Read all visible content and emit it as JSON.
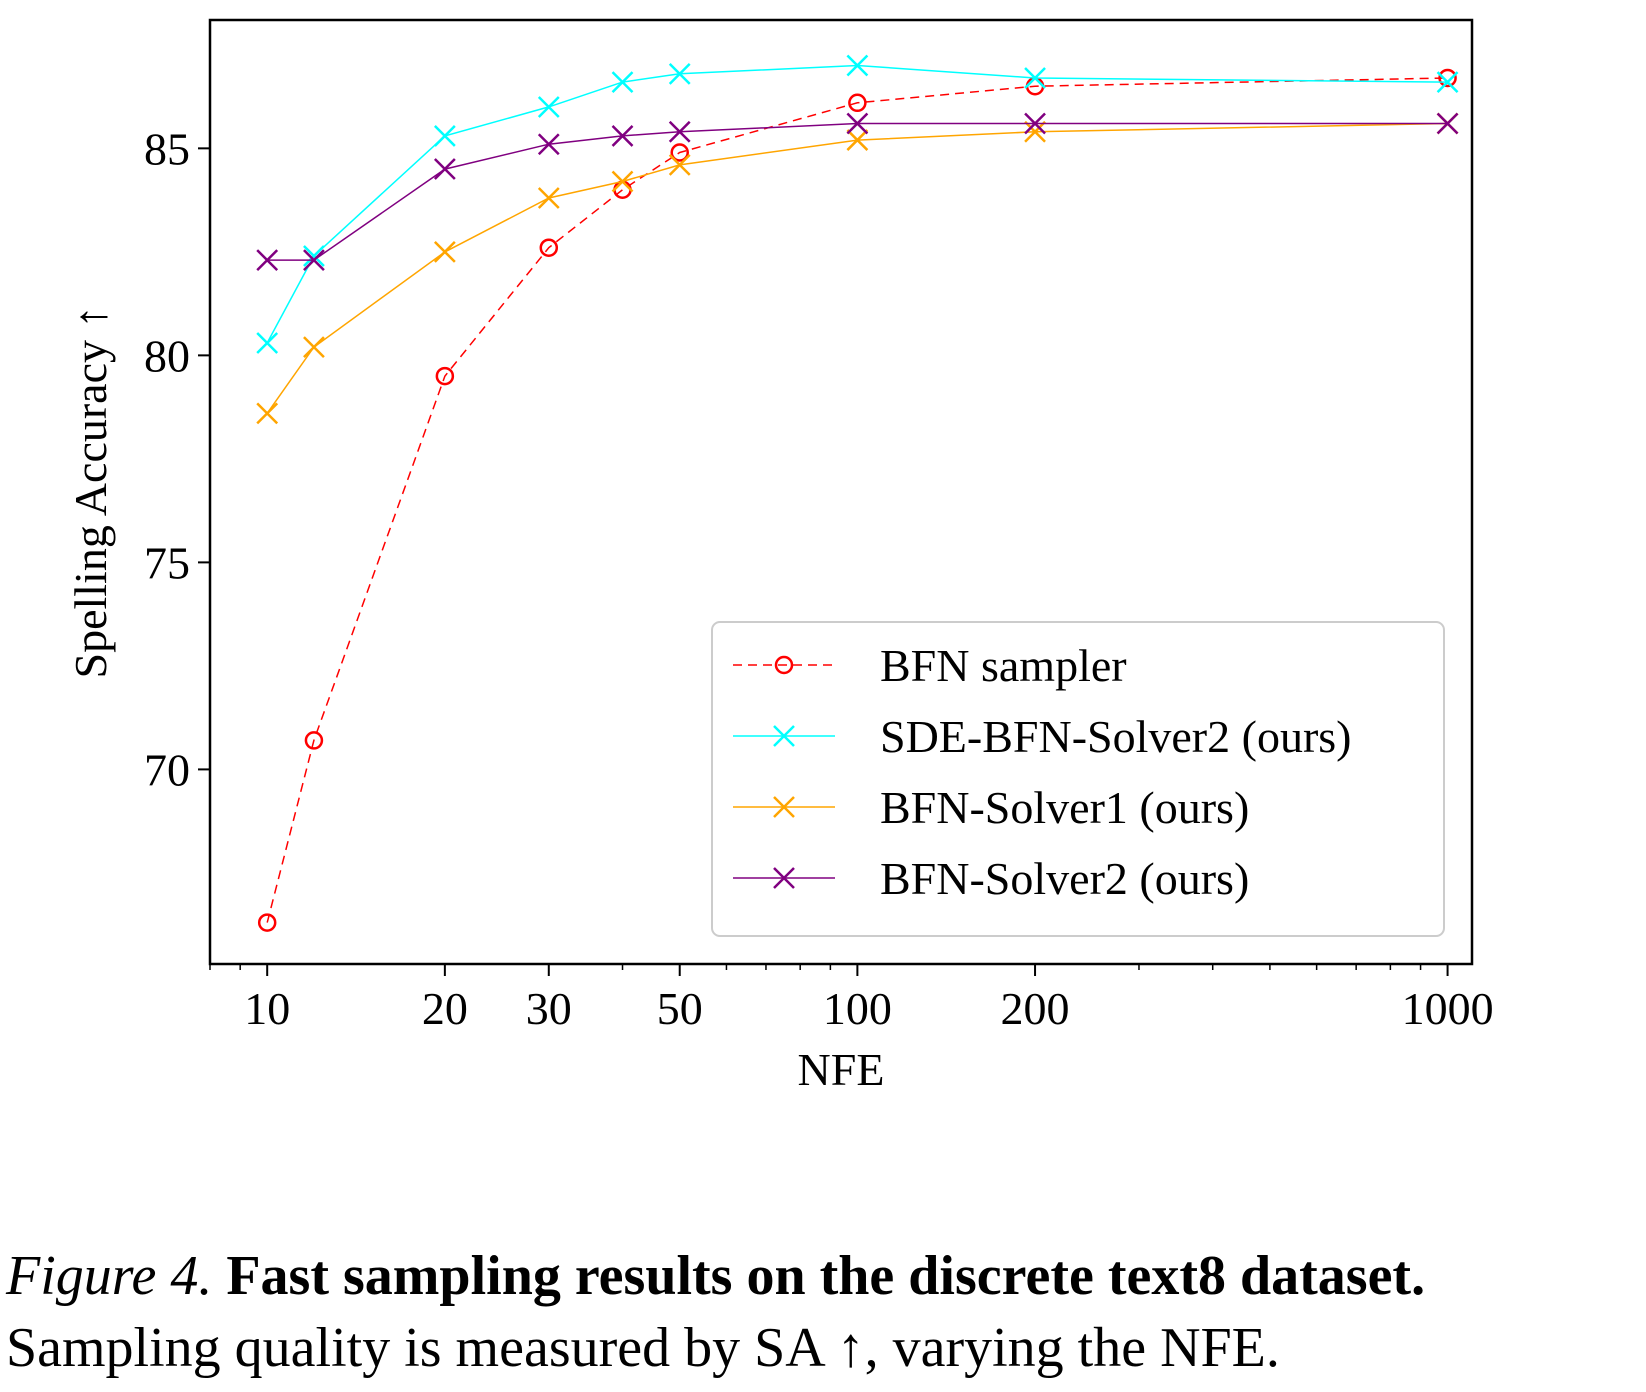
{
  "chart_data": {
    "type": "line",
    "xscale": "log",
    "xlabel": "NFE",
    "ylabel": "Spelling Accuracy ↑",
    "x_ticks": [
      10,
      20,
      30,
      50,
      100,
      200,
      1000
    ],
    "x_tick_labels": [
      "10",
      "20",
      "30",
      "50",
      "100",
      "200",
      "1000"
    ],
    "y_ticks": [
      70,
      75,
      80,
      85
    ],
    "y_tick_labels": [
      "70",
      "75",
      "80",
      "85"
    ],
    "xlim": [
      8,
      1100
    ],
    "ylim": [
      65.3,
      88.1
    ],
    "legend_position": "bottom-right",
    "series": [
      {
        "name": "BFN sampler",
        "color": "#ff0000",
        "marker": "circle",
        "linestyle": "dashed",
        "x": [
          10,
          12,
          20,
          30,
          40,
          50,
          100,
          200,
          1000
        ],
        "y": [
          66.3,
          70.7,
          79.5,
          82.6,
          84.0,
          84.9,
          86.1,
          86.5,
          86.7
        ]
      },
      {
        "name": "SDE-BFN-Solver2 (ours)",
        "color": "#00ffff",
        "marker": "x",
        "linestyle": "solid",
        "x": [
          10,
          12,
          20,
          30,
          40,
          50,
          100,
          200,
          1000
        ],
        "y": [
          80.3,
          82.4,
          85.3,
          86.0,
          86.6,
          86.8,
          87.0,
          86.7,
          86.6
        ]
      },
      {
        "name": "BFN-Solver1 (ours)",
        "color": "#ffa500",
        "marker": "x",
        "linestyle": "solid",
        "x": [
          10,
          12,
          20,
          30,
          40,
          50,
          100,
          200,
          1000
        ],
        "y": [
          78.6,
          80.2,
          82.5,
          83.8,
          84.2,
          84.6,
          85.2,
          85.4,
          85.6
        ]
      },
      {
        "name": "BFN-Solver2 (ours)",
        "color": "#800080",
        "marker": "x",
        "linestyle": "solid",
        "x": [
          10,
          12,
          20,
          30,
          40,
          50,
          100,
          200,
          1000
        ],
        "y": [
          82.3,
          82.3,
          84.5,
          85.1,
          85.3,
          85.4,
          85.6,
          85.6,
          85.6
        ]
      }
    ]
  },
  "caption": {
    "figure_label": "Figure 4.",
    "title": "Fast sampling results on the discrete text8 dataset.",
    "text": "Sampling quality is measured by SA ↑, varying the NFE."
  }
}
